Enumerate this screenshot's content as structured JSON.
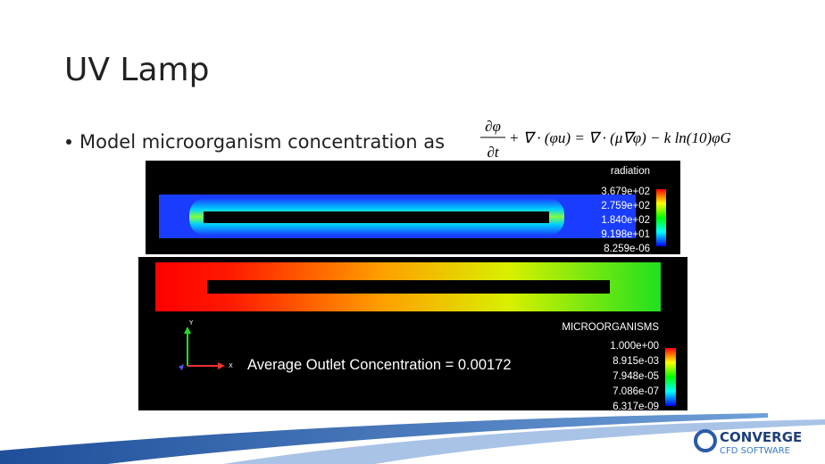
{
  "header": {
    "title": "UV Lamp"
  },
  "bullet": {
    "text": "Model microorganism concentration as",
    "equation": {
      "numerator": "∂φ",
      "denominator": "∂t",
      "rest": "+ ∇ · (φu) = ∇ · (μ∇φ) − k ln(10)φG"
    }
  },
  "radiation_panel": {
    "label": "radiation",
    "legend": [
      "3.679e+02",
      "2.759e+02",
      "1.840e+02",
      "9.198e+01",
      "8.259e-06"
    ]
  },
  "microorganism_panel": {
    "label": "MICROORGANISMS",
    "legend": [
      "1.000e+00",
      "8.915e-03",
      "7.948e-05",
      "7.086e-07",
      "6.317e-09"
    ],
    "annotation": "Average Outlet Concentration = 0.00172",
    "axis_y": "Y",
    "axis_x": "X"
  },
  "logo": {
    "name": "CONVERGE",
    "tagline": "CFD SOFTWARE"
  }
}
